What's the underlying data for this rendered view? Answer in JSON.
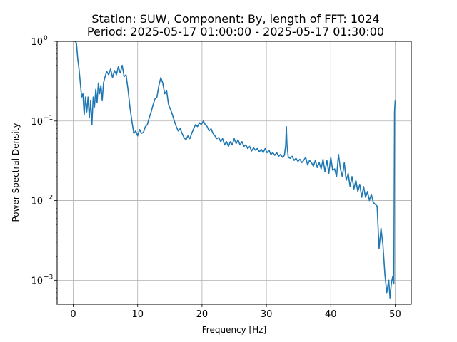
{
  "chart_data": {
    "type": "line",
    "title_line1": "Station: SUW, Component: By, length of FFT: 1024",
    "title_line2": "Period: 2025-05-17 01:00:00 - 2025-05-17 01:30:00",
    "xlabel": "Frequency [Hz]",
    "ylabel": "Power Spectral Density",
    "xlim": [
      -2.5,
      52.5
    ],
    "ylim": [
      0.0005,
      1
    ],
    "yscale": "log",
    "grid": true,
    "line_color": "#1f77b4",
    "x_ticks": [
      {
        "value": 0,
        "label": "0"
      },
      {
        "value": 10,
        "label": "10"
      },
      {
        "value": 20,
        "label": "20"
      },
      {
        "value": 30,
        "label": "30"
      },
      {
        "value": 40,
        "label": "40"
      },
      {
        "value": 50,
        "label": "50"
      }
    ],
    "y_ticks": [
      {
        "value": 0.001,
        "base": "10",
        "exp": "−3"
      },
      {
        "value": 0.01,
        "base": "10",
        "exp": "−2"
      },
      {
        "value": 0.1,
        "base": "10",
        "exp": "−1"
      },
      {
        "value": 1,
        "base": "10",
        "exp": "0"
      }
    ],
    "series": [
      {
        "x": [
          0.3,
          0.5,
          0.7,
          0.9,
          1.1,
          1.3,
          1.5,
          1.7,
          1.9,
          2.1,
          2.3,
          2.5,
          2.7,
          2.9,
          3.1,
          3.3,
          3.5,
          3.7,
          3.9,
          4.1,
          4.3,
          4.5,
          4.7,
          4.9,
          5.2,
          5.5,
          5.8,
          6.1,
          6.4,
          6.7,
          7.0,
          7.3,
          7.6,
          7.9,
          8.2,
          8.5,
          8.8,
          9.1,
          9.4,
          9.7,
          10.0,
          10.3,
          10.6,
          10.9,
          11.2,
          11.5,
          11.8,
          12.1,
          12.4,
          12.7,
          13.0,
          13.3,
          13.6,
          13.9,
          14.2,
          14.5,
          14.8,
          15.1,
          15.4,
          15.7,
          16.0,
          16.3,
          16.6,
          16.9,
          17.2,
          17.5,
          17.8,
          18.1,
          18.4,
          18.7,
          19.0,
          19.3,
          19.6,
          19.9,
          20.2,
          20.5,
          20.8,
          21.1,
          21.4,
          21.7,
          22.0,
          22.3,
          22.6,
          22.9,
          23.2,
          23.5,
          23.8,
          24.1,
          24.4,
          24.7,
          25.0,
          25.3,
          25.6,
          25.9,
          26.2,
          26.5,
          26.8,
          27.1,
          27.4,
          27.7,
          28.0,
          28.3,
          28.6,
          28.9,
          29.2,
          29.5,
          29.8,
          30.1,
          30.4,
          30.7,
          31.0,
          31.3,
          31.6,
          31.9,
          32.2,
          32.5,
          32.8,
          33.0,
          33.1,
          33.2,
          33.4,
          33.7,
          34.0,
          34.3,
          34.6,
          34.9,
          35.2,
          35.5,
          35.8,
          36.1,
          36.4,
          36.7,
          37.0,
          37.3,
          37.6,
          37.9,
          38.2,
          38.5,
          38.8,
          39.1,
          39.4,
          39.7,
          40.0,
          40.3,
          40.6,
          40.9,
          41.2,
          41.5,
          41.8,
          42.1,
          42.4,
          42.7,
          43.0,
          43.3,
          43.6,
          43.9,
          44.2,
          44.5,
          44.8,
          45.1,
          45.4,
          45.7,
          46.0,
          46.3,
          46.6,
          46.9,
          47.2,
          47.5,
          47.8,
          48.1,
          48.4,
          48.7,
          49.0,
          49.2,
          49.4,
          49.6,
          49.8,
          49.9,
          50.0
        ],
        "y": [
          1.0,
          0.95,
          0.6,
          0.45,
          0.3,
          0.2,
          0.22,
          0.12,
          0.2,
          0.13,
          0.2,
          0.11,
          0.18,
          0.09,
          0.2,
          0.15,
          0.25,
          0.17,
          0.3,
          0.22,
          0.28,
          0.18,
          0.3,
          0.35,
          0.42,
          0.38,
          0.45,
          0.35,
          0.43,
          0.38,
          0.48,
          0.4,
          0.5,
          0.36,
          0.38,
          0.25,
          0.15,
          0.1,
          0.07,
          0.075,
          0.065,
          0.078,
          0.07,
          0.072,
          0.085,
          0.09,
          0.11,
          0.13,
          0.16,
          0.19,
          0.2,
          0.28,
          0.35,
          0.3,
          0.22,
          0.24,
          0.16,
          0.14,
          0.12,
          0.1,
          0.085,
          0.075,
          0.08,
          0.07,
          0.062,
          0.058,
          0.065,
          0.06,
          0.07,
          0.08,
          0.09,
          0.085,
          0.095,
          0.09,
          0.1,
          0.09,
          0.085,
          0.075,
          0.08,
          0.07,
          0.065,
          0.06,
          0.062,
          0.055,
          0.06,
          0.05,
          0.055,
          0.048,
          0.055,
          0.05,
          0.06,
          0.052,
          0.058,
          0.05,
          0.055,
          0.048,
          0.05,
          0.045,
          0.048,
          0.042,
          0.046,
          0.043,
          0.045,
          0.041,
          0.044,
          0.04,
          0.045,
          0.04,
          0.043,
          0.038,
          0.04,
          0.037,
          0.04,
          0.036,
          0.038,
          0.035,
          0.037,
          0.05,
          0.085,
          0.05,
          0.035,
          0.034,
          0.036,
          0.032,
          0.034,
          0.031,
          0.033,
          0.03,
          0.032,
          0.035,
          0.028,
          0.032,
          0.03,
          0.027,
          0.032,
          0.026,
          0.03,
          0.025,
          0.033,
          0.023,
          0.032,
          0.022,
          0.035,
          0.024,
          0.025,
          0.02,
          0.038,
          0.025,
          0.02,
          0.03,
          0.018,
          0.022,
          0.015,
          0.02,
          0.014,
          0.018,
          0.013,
          0.016,
          0.011,
          0.015,
          0.011,
          0.013,
          0.01,
          0.012,
          0.0095,
          0.009,
          0.0085,
          0.0025,
          0.0045,
          0.0028,
          0.0012,
          0.0007,
          0.001,
          0.0006,
          0.0009,
          0.0011,
          0.0009,
          0.13,
          0.18
        ]
      }
    ]
  }
}
